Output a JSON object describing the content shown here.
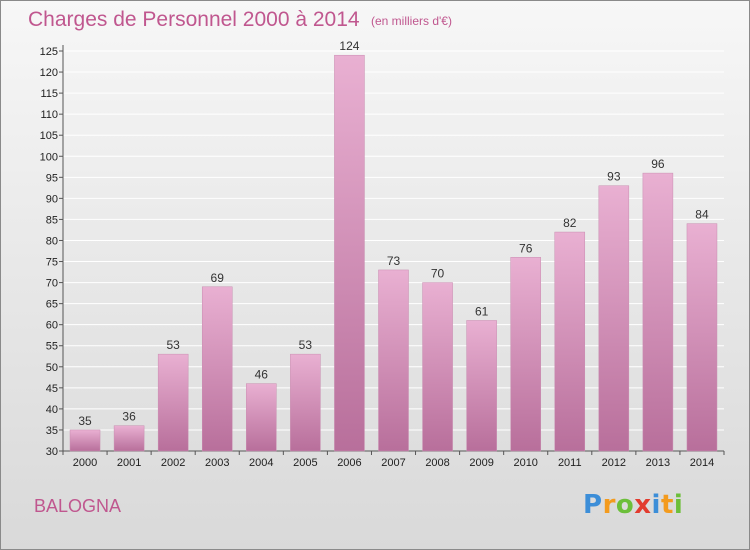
{
  "header": {
    "title": "Charges de Personnel 2000 à 2014",
    "unit": "(en milliers d'€)"
  },
  "footer": {
    "commune": "BALOGNA",
    "logo_letters": [
      {
        "ch": "P",
        "color": "#3c8ed8"
      },
      {
        "ch": "r",
        "color": "#f39b1e"
      },
      {
        "ch": "o",
        "color": "#6cbf3a"
      },
      {
        "ch": "x",
        "color": "#e23b2e"
      },
      {
        "ch": "i",
        "color": "#3c8ed8"
      },
      {
        "ch": "t",
        "color": "#f39b1e"
      },
      {
        "ch": "i",
        "color": "#6cbf3a"
      }
    ]
  },
  "colors": {
    "accent": "#c0578f",
    "bar_light": "#e9b0d2",
    "bar_dark": "#b86f9b",
    "grid": "#ffffff",
    "axis_text": "#222222"
  },
  "chart_data": {
    "type": "bar",
    "categories": [
      "2000",
      "2001",
      "2002",
      "2003",
      "2004",
      "2005",
      "2006",
      "2007",
      "2008",
      "2009",
      "2010",
      "2011",
      "2012",
      "2013",
      "2014"
    ],
    "values": [
      35,
      36,
      53,
      69,
      46,
      53,
      124,
      73,
      70,
      61,
      76,
      82,
      93,
      96,
      84
    ],
    "data_labels": [
      "35",
      "36",
      "53",
      "69",
      "46",
      "53",
      "124",
      "73",
      "70",
      "61",
      "76",
      "82",
      "93",
      "96",
      "84"
    ],
    "ylim": [
      30,
      125
    ],
    "yticks": [
      30,
      35,
      40,
      45,
      50,
      55,
      60,
      65,
      70,
      75,
      80,
      85,
      90,
      95,
      100,
      105,
      110,
      115,
      120,
      125
    ],
    "grid": true,
    "legend": "none"
  }
}
